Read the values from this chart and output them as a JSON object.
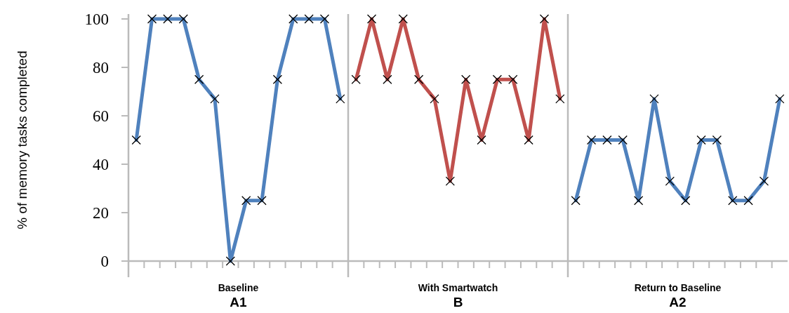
{
  "chart_data": {
    "type": "line",
    "ylabel": "% of memory tasks completed",
    "annotations": [
      "Baseline\nA1",
      "With Smartwatch\nB",
      "Return to Baseline\nA2"
    ],
    "categories": [
      null,
      null,
      null,
      null,
      null,
      null,
      null,
      null,
      null,
      null,
      null,
      null,
      null,
      null,
      null,
      null,
      null,
      null,
      null,
      null,
      null,
      null,
      null,
      null,
      null,
      null,
      null,
      null,
      null,
      null,
      null,
      null,
      null,
      null,
      null,
      null,
      null,
      null,
      null,
      null,
      null,
      null
    ],
    "ylim": [
      0,
      102
    ],
    "yticks": [
      0,
      20,
      40,
      60,
      80,
      100
    ],
    "tick_labels": "y",
    "marker": "cross",
    "line_style": "solid",
    "grid": false,
    "series": [
      {
        "color": "#4f81bd",
        "values": [
          50,
          100,
          100,
          100,
          75,
          67,
          0,
          25,
          25,
          75,
          100,
          100,
          100,
          67,
          null,
          null,
          null,
          null,
          null,
          null,
          null,
          null,
          null,
          null,
          null,
          null,
          null,
          null,
          null,
          null,
          null,
          null,
          null,
          null,
          null,
          null,
          null,
          null,
          null,
          null,
          null,
          null
        ]
      },
      {
        "color": "#c0504d",
        "values": [
          null,
          null,
          null,
          null,
          null,
          null,
          null,
          null,
          null,
          null,
          null,
          null,
          null,
          null,
          75,
          100,
          75,
          100,
          75,
          67,
          33,
          75,
          50,
          75,
          75,
          50,
          100,
          67,
          null,
          null,
          null,
          null,
          null,
          null,
          null,
          null,
          null,
          null,
          null,
          null,
          null,
          null
        ]
      },
      {
        "color": "#4f81bd",
        "values": [
          null,
          null,
          null,
          null,
          null,
          null,
          null,
          null,
          null,
          null,
          null,
          null,
          null,
          null,
          null,
          null,
          null,
          null,
          null,
          null,
          null,
          null,
          null,
          null,
          null,
          null,
          null,
          null,
          25,
          50,
          50,
          50,
          25,
          67,
          33,
          25,
          50,
          50,
          25,
          25,
          33,
          67
        ]
      }
    ]
  }
}
